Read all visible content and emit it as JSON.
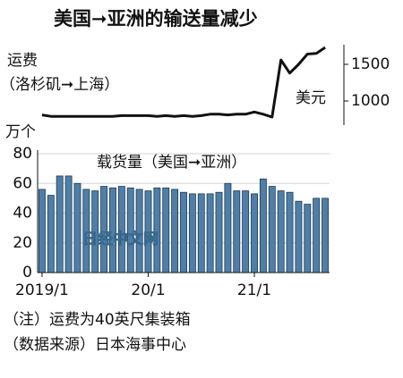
{
  "title": "美国➞亚洲的输送量减少",
  "watermark": "日经中文网",
  "notes": [
    "（注）运费为40英尺集装箱",
    "（数据来源）日本海事中心"
  ],
  "chart_data": [
    {
      "type": "line",
      "title": "运费",
      "subtitle": "（洛杉矶➞上海）",
      "y_label": "美元",
      "color": "#111111",
      "values": [
        810,
        790,
        790,
        790,
        790,
        790,
        790,
        790,
        790,
        800,
        800,
        800,
        800,
        790,
        800,
        790,
        800,
        790,
        800,
        820,
        820,
        810,
        820,
        820,
        850,
        820,
        780,
        1560,
        1380,
        1500,
        1640,
        1650,
        1730
      ],
      "ylim": [
        700,
        1800
      ],
      "yticks": [
        1000,
        1500
      ]
    },
    {
      "type": "bar",
      "title": "载货量（美国➞亚洲）",
      "y_label": "万个",
      "color": "#4f7fa8",
      "categories": [
        "2019/1",
        null,
        null,
        null,
        null,
        null,
        null,
        null,
        null,
        null,
        null,
        null,
        "20/1",
        null,
        null,
        null,
        null,
        null,
        null,
        null,
        null,
        null,
        null,
        null,
        "21/1",
        null,
        null,
        null,
        null,
        null,
        null,
        null,
        null
      ],
      "values": [
        56,
        52,
        65,
        65,
        60,
        56,
        55,
        58,
        57,
        58,
        57,
        56,
        55,
        57,
        57,
        56,
        54,
        53,
        53,
        53,
        54,
        60,
        55,
        55,
        53,
        63,
        58,
        55,
        54,
        48,
        46,
        50,
        50
      ],
      "ylim": [
        0,
        80
      ],
      "yticks": [
        0,
        20,
        40,
        60,
        80
      ],
      "grid": true
    }
  ]
}
